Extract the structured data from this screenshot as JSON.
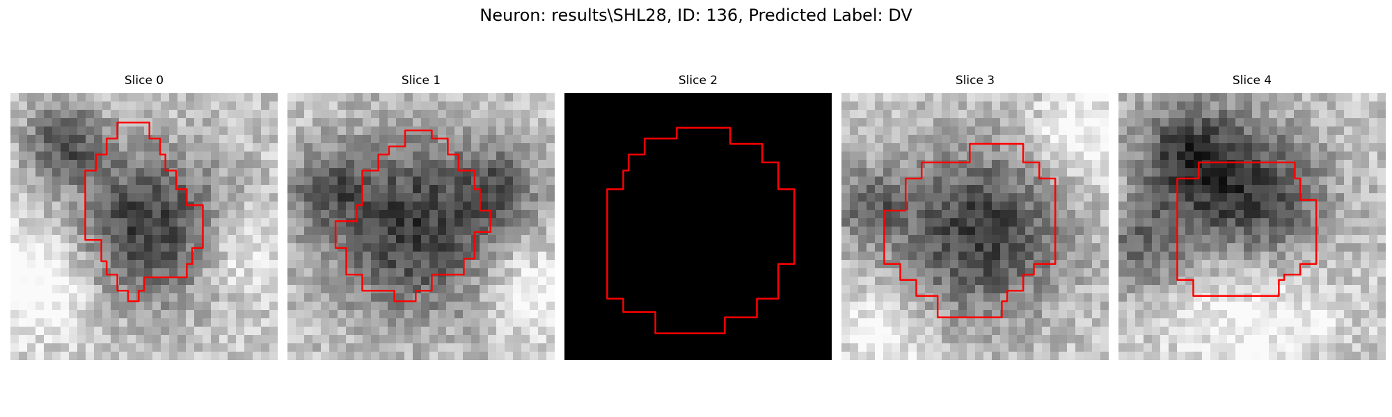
{
  "figure": {
    "suptitle": "Neuron: results\\SHL28, ID: 136, Predicted Label: DV",
    "contour_color": "#ff0000"
  },
  "panels": [
    {
      "title": "Slice 0",
      "blank": false,
      "seed": 11,
      "blobs": [
        [
          0.52,
          0.5,
          0.2,
          0.55
        ],
        [
          0.2,
          0.18,
          0.1,
          0.45
        ],
        [
          0.85,
          0.6,
          0.12,
          -0.2
        ],
        [
          0.1,
          0.7,
          0.14,
          -0.35
        ]
      ],
      "contour": [
        [
          0.4,
          0.11
        ],
        [
          0.4,
          0.17
        ],
        [
          0.36,
          0.17
        ],
        [
          0.36,
          0.23
        ],
        [
          0.32,
          0.23
        ],
        [
          0.32,
          0.29
        ],
        [
          0.28,
          0.29
        ],
        [
          0.28,
          0.55
        ],
        [
          0.34,
          0.55
        ],
        [
          0.34,
          0.63
        ],
        [
          0.36,
          0.63
        ],
        [
          0.36,
          0.68
        ],
        [
          0.4,
          0.68
        ],
        [
          0.4,
          0.74
        ],
        [
          0.44,
          0.74
        ],
        [
          0.44,
          0.78
        ],
        [
          0.48,
          0.78
        ],
        [
          0.48,
          0.74
        ],
        [
          0.5,
          0.74
        ],
        [
          0.5,
          0.69
        ],
        [
          0.66,
          0.69
        ],
        [
          0.66,
          0.64
        ],
        [
          0.68,
          0.64
        ],
        [
          0.68,
          0.58
        ],
        [
          0.72,
          0.58
        ],
        [
          0.72,
          0.42
        ],
        [
          0.66,
          0.42
        ],
        [
          0.66,
          0.36
        ],
        [
          0.62,
          0.36
        ],
        [
          0.62,
          0.29
        ],
        [
          0.58,
          0.29
        ],
        [
          0.58,
          0.23
        ],
        [
          0.56,
          0.23
        ],
        [
          0.56,
          0.17
        ],
        [
          0.52,
          0.17
        ],
        [
          0.52,
          0.11
        ]
      ]
    },
    {
      "title": "Slice 1",
      "blank": false,
      "seed": 23,
      "blobs": [
        [
          0.47,
          0.5,
          0.24,
          0.55
        ],
        [
          0.15,
          0.35,
          0.1,
          0.3
        ],
        [
          0.8,
          0.35,
          0.1,
          0.3
        ],
        [
          0.9,
          0.75,
          0.12,
          -0.25
        ]
      ],
      "contour": [
        [
          0.44,
          0.14
        ],
        [
          0.44,
          0.2
        ],
        [
          0.38,
          0.2
        ],
        [
          0.38,
          0.23
        ],
        [
          0.34,
          0.23
        ],
        [
          0.34,
          0.29
        ],
        [
          0.28,
          0.29
        ],
        [
          0.28,
          0.42
        ],
        [
          0.26,
          0.42
        ],
        [
          0.26,
          0.48
        ],
        [
          0.18,
          0.48
        ],
        [
          0.18,
          0.58
        ],
        [
          0.22,
          0.58
        ],
        [
          0.22,
          0.68
        ],
        [
          0.28,
          0.68
        ],
        [
          0.28,
          0.74
        ],
        [
          0.4,
          0.74
        ],
        [
          0.4,
          0.78
        ],
        [
          0.48,
          0.78
        ],
        [
          0.48,
          0.74
        ],
        [
          0.54,
          0.74
        ],
        [
          0.54,
          0.68
        ],
        [
          0.66,
          0.68
        ],
        [
          0.66,
          0.62
        ],
        [
          0.7,
          0.62
        ],
        [
          0.7,
          0.52
        ],
        [
          0.76,
          0.52
        ],
        [
          0.76,
          0.44
        ],
        [
          0.72,
          0.44
        ],
        [
          0.72,
          0.36
        ],
        [
          0.7,
          0.36
        ],
        [
          0.7,
          0.29
        ],
        [
          0.64,
          0.29
        ],
        [
          0.64,
          0.23
        ],
        [
          0.6,
          0.23
        ],
        [
          0.6,
          0.17
        ],
        [
          0.54,
          0.17
        ],
        [
          0.54,
          0.14
        ]
      ]
    },
    {
      "title": "Slice 2",
      "blank": true,
      "seed": 0,
      "blobs": [],
      "contour": [
        [
          0.42,
          0.13
        ],
        [
          0.42,
          0.17
        ],
        [
          0.3,
          0.17
        ],
        [
          0.3,
          0.23
        ],
        [
          0.24,
          0.23
        ],
        [
          0.24,
          0.29
        ],
        [
          0.22,
          0.29
        ],
        [
          0.22,
          0.36
        ],
        [
          0.16,
          0.36
        ],
        [
          0.16,
          0.77
        ],
        [
          0.22,
          0.77
        ],
        [
          0.22,
          0.82
        ],
        [
          0.34,
          0.82
        ],
        [
          0.34,
          0.9
        ],
        [
          0.6,
          0.9
        ],
        [
          0.6,
          0.84
        ],
        [
          0.72,
          0.84
        ],
        [
          0.72,
          0.77
        ],
        [
          0.8,
          0.77
        ],
        [
          0.8,
          0.64
        ],
        [
          0.86,
          0.64
        ],
        [
          0.86,
          0.36
        ],
        [
          0.8,
          0.36
        ],
        [
          0.8,
          0.26
        ],
        [
          0.74,
          0.26
        ],
        [
          0.74,
          0.19
        ],
        [
          0.62,
          0.19
        ],
        [
          0.62,
          0.13
        ]
      ]
    },
    {
      "title": "Slice 3",
      "blank": false,
      "seed": 37,
      "blobs": [
        [
          0.52,
          0.52,
          0.22,
          0.55
        ],
        [
          0.1,
          0.42,
          0.1,
          0.35
        ],
        [
          0.9,
          0.15,
          0.12,
          -0.25
        ],
        [
          0.15,
          0.9,
          0.12,
          -0.2
        ]
      ],
      "contour": [
        [
          0.48,
          0.19
        ],
        [
          0.48,
          0.26
        ],
        [
          0.3,
          0.26
        ],
        [
          0.3,
          0.32
        ],
        [
          0.24,
          0.32
        ],
        [
          0.24,
          0.44
        ],
        [
          0.16,
          0.44
        ],
        [
          0.16,
          0.64
        ],
        [
          0.22,
          0.64
        ],
        [
          0.22,
          0.7
        ],
        [
          0.28,
          0.7
        ],
        [
          0.28,
          0.76
        ],
        [
          0.36,
          0.76
        ],
        [
          0.36,
          0.84
        ],
        [
          0.6,
          0.84
        ],
        [
          0.6,
          0.78
        ],
        [
          0.62,
          0.78
        ],
        [
          0.62,
          0.74
        ],
        [
          0.68,
          0.74
        ],
        [
          0.68,
          0.68
        ],
        [
          0.72,
          0.68
        ],
        [
          0.72,
          0.64
        ],
        [
          0.8,
          0.64
        ],
        [
          0.8,
          0.32
        ],
        [
          0.74,
          0.32
        ],
        [
          0.74,
          0.26
        ],
        [
          0.68,
          0.26
        ],
        [
          0.68,
          0.19
        ]
      ]
    },
    {
      "title": "Slice 4",
      "blank": false,
      "seed": 53,
      "blobs": [
        [
          0.5,
          0.4,
          0.2,
          0.55
        ],
        [
          0.25,
          0.22,
          0.14,
          0.45
        ],
        [
          0.1,
          0.58,
          0.12,
          0.35
        ],
        [
          0.5,
          0.8,
          0.2,
          -0.25
        ]
      ],
      "contour": [
        [
          0.3,
          0.26
        ],
        [
          0.3,
          0.32
        ],
        [
          0.22,
          0.32
        ],
        [
          0.22,
          0.7
        ],
        [
          0.28,
          0.7
        ],
        [
          0.28,
          0.76
        ],
        [
          0.6,
          0.76
        ],
        [
          0.6,
          0.7
        ],
        [
          0.62,
          0.7
        ],
        [
          0.62,
          0.68
        ],
        [
          0.68,
          0.68
        ],
        [
          0.68,
          0.64
        ],
        [
          0.74,
          0.64
        ],
        [
          0.74,
          0.4
        ],
        [
          0.68,
          0.4
        ],
        [
          0.68,
          0.32
        ],
        [
          0.66,
          0.32
        ],
        [
          0.66,
          0.26
        ]
      ]
    }
  ]
}
